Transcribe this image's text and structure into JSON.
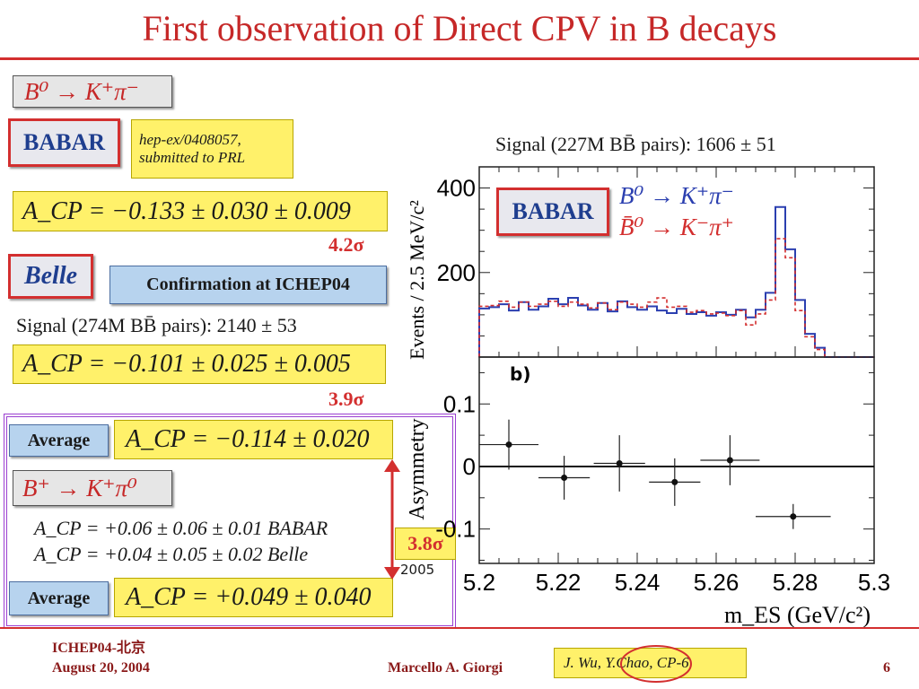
{
  "slide": {
    "title": "First observation of Direct CPV in B decays",
    "number": "6"
  },
  "left": {
    "decay1": "B⁰ → K⁺π⁻",
    "babar_logo": "BABAR",
    "ref_line1": "hep-ex/0408057,",
    "ref_line2": "submitted to PRL",
    "babar_acp": "A_CP = −0.133 ± 0.030 ± 0.009",
    "babar_sigma": "4.2σ",
    "belle_logo": "Belle",
    "confirmation": "Confirmation at ICHEP04",
    "belle_signal": "Signal (274M BB̄ pairs): 2140 ± 53",
    "belle_acp": "A_CP = −0.101 ± 0.025 ± 0.005",
    "belle_sigma": "3.9σ",
    "average_label": "Average",
    "average_acp": "A_CP = −0.114 ± 0.020",
    "decay2": "B⁺ → K⁺π⁰",
    "kpi0_babar": "A_CP = +0.06 ± 0.06 ± 0.01   BABAR",
    "kpi0_belle": "A_CP = +0.04 ± 0.05 ± 0.02   Belle",
    "average2_label": "Average",
    "average2_acp": "A_CP = +0.049 ± 0.040",
    "diff_sigma": "3.8σ",
    "diff_year": "2005"
  },
  "plot": {
    "signal_text": "Signal (227M BB̄ pairs): 1606 ± 51",
    "logo": "BABAR",
    "legend_b0": "B⁰ → K⁺π⁻",
    "legend_b0bar": "B̄⁰ → K⁻π⁺",
    "panel_b": "b)",
    "colors": {
      "b0": "#2b3fb0",
      "b0bar": "#d32f2f"
    }
  },
  "chart_data": [
    {
      "type": "line",
      "xlim": [
        5.2,
        5.3
      ],
      "ylim": [
        0,
        450
      ],
      "ylabel": "Events / 2.5 MeV/c²",
      "yticks": [
        200,
        400
      ],
      "yticklabels": [
        "200",
        "400"
      ],
      "x": [
        5.2,
        5.2025,
        5.205,
        5.2075,
        5.21,
        5.2125,
        5.215,
        5.2175,
        5.22,
        5.2225,
        5.225,
        5.2275,
        5.23,
        5.2325,
        5.235,
        5.2375,
        5.24,
        5.2425,
        5.245,
        5.2475,
        5.25,
        5.2525,
        5.255,
        5.2575,
        5.26,
        5.2625,
        5.265,
        5.2675,
        5.27,
        5.2725,
        5.275,
        5.2775,
        5.28,
        5.2825,
        5.285,
        5.2875,
        5.29,
        5.2925,
        5.295,
        5.2975
      ],
      "series": [
        {
          "name": "B⁰ → K⁺π⁻",
          "style": "solid",
          "color": "#2b3fb0",
          "values": [
            115,
            118,
            125,
            110,
            130,
            112,
            120,
            138,
            125,
            140,
            122,
            112,
            128,
            108,
            132,
            118,
            112,
            120,
            110,
            104,
            114,
            102,
            106,
            98,
            106,
            100,
            112,
            94,
            112,
            152,
            355,
            255,
            135,
            55,
            22,
            0,
            0,
            0,
            0,
            0
          ]
        },
        {
          "name": "B̄⁰ → K⁻π⁺",
          "style": "dashed",
          "color": "#d32f2f",
          "values": [
            120,
            122,
            132,
            118,
            130,
            120,
            125,
            132,
            120,
            130,
            125,
            116,
            128,
            112,
            130,
            125,
            118,
            130,
            140,
            118,
            120,
            106,
            110,
            102,
            104,
            98,
            110,
            76,
            102,
            135,
            280,
            235,
            110,
            48,
            18,
            0,
            0,
            0,
            0,
            0
          ]
        }
      ]
    },
    {
      "type": "scatter",
      "xlim": [
        5.2,
        5.3
      ],
      "ylim": [
        -0.155,
        0.175
      ],
      "xlabel": "m_ES (GeV/c²)",
      "ylabel": "Asymmetry",
      "xticks": [
        5.2,
        5.22,
        5.24,
        5.26,
        5.28,
        5.3
      ],
      "xticklabels": [
        "5.2",
        "5.22",
        "5.24",
        "5.26",
        "5.28",
        "5.3"
      ],
      "yticks": [
        -0.1,
        0,
        0.1
      ],
      "yticklabels": [
        "-0.1",
        "0",
        "0.1"
      ],
      "points": [
        {
          "x": 5.2075,
          "y": 0.035,
          "xerr": 0.0075,
          "yerr": 0.04
        },
        {
          "x": 5.2215,
          "y": -0.018,
          "xerr": 0.0065,
          "yerr": 0.035
        },
        {
          "x": 5.2355,
          "y": 0.005,
          "xerr": 0.0065,
          "yerr": 0.045
        },
        {
          "x": 5.2495,
          "y": -0.025,
          "xerr": 0.0065,
          "yerr": 0.038
        },
        {
          "x": 5.2635,
          "y": 0.01,
          "xerr": 0.0075,
          "yerr": 0.04
        },
        {
          "x": 5.2795,
          "y": -0.08,
          "xerr": 0.0095,
          "yerr": 0.02
        }
      ]
    }
  ],
  "footer": {
    "conf": "ICHEP04-北京",
    "date": "August 20, 2004",
    "author": "Marcello A. Giorgi",
    "credit": "J. Wu, Y.Chao, CP-6"
  }
}
